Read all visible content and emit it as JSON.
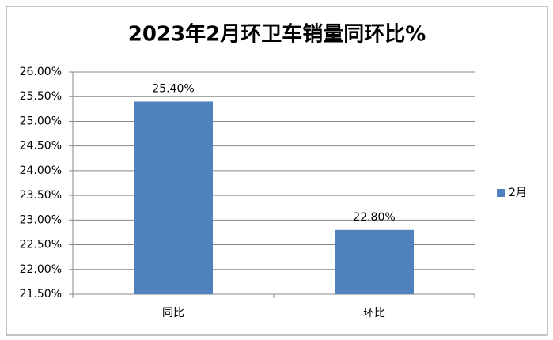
{
  "chart_data": {
    "type": "bar",
    "title": "2023年2月环卫车销量同环比%",
    "categories": [
      "同比",
      "环比"
    ],
    "series": [
      {
        "name": "2月",
        "color": "#4f81bd",
        "values": [
          25.4,
          22.8
        ],
        "value_labels": [
          "25.40%",
          "22.80%"
        ]
      }
    ],
    "ylim": [
      21.5,
      26
    ],
    "yticks": [
      {
        "value": 21.5,
        "label": "21.50%"
      },
      {
        "value": 22,
        "label": "22.00%"
      },
      {
        "value": 22.5,
        "label": "22.50%"
      },
      {
        "value": 23,
        "label": "23.00%"
      },
      {
        "value": 23.5,
        "label": "23.50%"
      },
      {
        "value": 24,
        "label": "24.00%"
      },
      {
        "value": 24.5,
        "label": "24.50%"
      },
      {
        "value": 25,
        "label": "25.00%"
      },
      {
        "value": 25.5,
        "label": "25.50%"
      },
      {
        "value": 26,
        "label": "26.00%"
      }
    ],
    "grid": true,
    "legend": "right"
  }
}
